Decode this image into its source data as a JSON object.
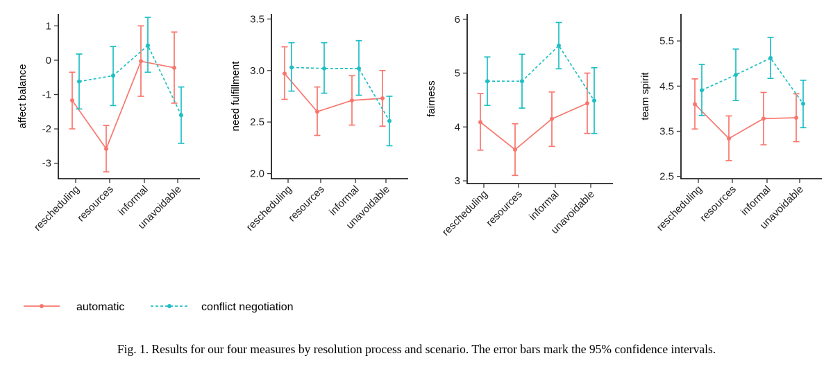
{
  "colors": {
    "automatic": "#F8766D",
    "conflict": "#1FBFC4",
    "axis": "#000000"
  },
  "legend": [
    {
      "label": "automatic",
      "color": "#F8766D",
      "style": "solid"
    },
    {
      "label": "conflict negotiation",
      "color": "#1FBFC4",
      "style": "dashed"
    }
  ],
  "caption": "Fig. 1.  Results for our four measures by resolution process and scenario. The error bars mark the 95% confidence intervals.",
  "chart_data": [
    {
      "type": "line",
      "ylabel": "affect balance",
      "categories": [
        "rescheduling",
        "resources",
        "informal",
        "unavoidable"
      ],
      "ylim": [
        -3.45,
        1.35
      ],
      "yticks": [
        -3,
        -2,
        -1,
        0,
        1
      ],
      "ytick_labels": [
        "-3",
        "-2",
        "-1",
        "0",
        "1"
      ],
      "series": [
        {
          "name": "automatic",
          "values": [
            -1.17,
            -2.58,
            -0.03,
            -0.22
          ],
          "lower": [
            -2.0,
            -3.25,
            -1.05,
            -1.25
          ],
          "upper": [
            -0.35,
            -1.9,
            1.0,
            0.82
          ]
        },
        {
          "name": "conflict negotiation",
          "values": [
            -0.62,
            -0.45,
            0.43,
            -1.6
          ],
          "lower": [
            -1.42,
            -1.32,
            -0.35,
            -2.42
          ],
          "upper": [
            0.18,
            0.4,
            1.25,
            -0.78
          ]
        }
      ]
    },
    {
      "type": "line",
      "ylabel": "need fulfillment",
      "categories": [
        "rescheduling",
        "resources",
        "informal",
        "unavoidable"
      ],
      "ylim": [
        1.95,
        3.55
      ],
      "yticks": [
        2.0,
        2.5,
        3.0,
        3.5
      ],
      "ytick_labels": [
        "2.0",
        "2.5",
        "3.0",
        "3.5"
      ],
      "series": [
        {
          "name": "automatic",
          "values": [
            2.97,
            2.6,
            2.71,
            2.73
          ],
          "lower": [
            2.72,
            2.37,
            2.47,
            2.46
          ],
          "upper": [
            3.23,
            2.84,
            2.95,
            3.0
          ]
        },
        {
          "name": "conflict negotiation",
          "values": [
            3.03,
            3.02,
            3.02,
            2.51
          ],
          "lower": [
            2.8,
            2.78,
            2.76,
            2.27
          ],
          "upper": [
            3.27,
            3.27,
            3.29,
            2.75
          ]
        }
      ]
    },
    {
      "type": "line",
      "ylabel": "fairness",
      "categories": [
        "rescheduling",
        "resources",
        "informal",
        "unavoidable"
      ],
      "ylim": [
        2.95,
        6.1
      ],
      "yticks": [
        3,
        4,
        5,
        6
      ],
      "ytick_labels": [
        "3",
        "4",
        "5",
        "6"
      ],
      "series": [
        {
          "name": "automatic",
          "values": [
            4.09,
            3.58,
            4.15,
            4.44
          ],
          "lower": [
            3.57,
            3.1,
            3.64,
            3.88
          ],
          "upper": [
            4.62,
            4.06,
            4.65,
            5.0
          ]
        },
        {
          "name": "conflict negotiation",
          "values": [
            4.85,
            4.85,
            5.51,
            4.49
          ],
          "lower": [
            4.4,
            4.35,
            5.08,
            3.88
          ],
          "upper": [
            5.3,
            5.35,
            5.94,
            5.1
          ]
        }
      ]
    },
    {
      "type": "line",
      "ylabel": "team spirit",
      "categories": [
        "rescheduling",
        "resources",
        "informal",
        "unavoidable"
      ],
      "ylim": [
        2.45,
        6.1
      ],
      "yticks": [
        2.5,
        3.5,
        4.5,
        5.5
      ],
      "ytick_labels": [
        "2.5",
        "3.5",
        "4.5",
        "5.5"
      ],
      "series": [
        {
          "name": "automatic",
          "values": [
            4.1,
            3.34,
            3.78,
            3.8
          ],
          "lower": [
            3.55,
            2.85,
            3.2,
            3.27
          ],
          "upper": [
            4.66,
            3.84,
            4.36,
            4.33
          ]
        },
        {
          "name": "conflict negotiation",
          "values": [
            4.41,
            4.75,
            5.12,
            4.11
          ],
          "lower": [
            3.85,
            4.18,
            4.67,
            3.58
          ],
          "upper": [
            4.98,
            5.32,
            5.58,
            4.63
          ]
        }
      ]
    }
  ]
}
